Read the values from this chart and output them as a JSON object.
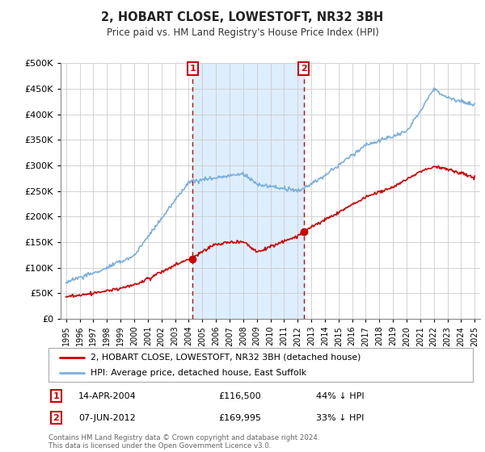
{
  "title": "2, HOBART CLOSE, LOWESTOFT, NR32 3BH",
  "subtitle": "Price paid vs. HM Land Registry's House Price Index (HPI)",
  "legend_line1": "2, HOBART CLOSE, LOWESTOFT, NR32 3BH (detached house)",
  "legend_line2": "HPI: Average price, detached house, East Suffolk",
  "sale1_date": "14-APR-2004",
  "sale1_price": 116500,
  "sale1_label": "44% ↓ HPI",
  "sale2_date": "07-JUN-2012",
  "sale2_price": 169995,
  "sale2_label": "33% ↓ HPI",
  "footnote": "Contains HM Land Registry data © Crown copyright and database right 2024.\nThis data is licensed under the Open Government Licence v3.0.",
  "ylim": [
    0,
    500000
  ],
  "yticks": [
    0,
    50000,
    100000,
    150000,
    200000,
    250000,
    300000,
    350000,
    400000,
    450000,
    500000
  ],
  "hpi_color": "#7aafdc",
  "property_color": "#cc0000",
  "shade_color": "#ddeeff",
  "vline_color": "#cc0000",
  "marker_box_color": "#cc0000",
  "background_color": "#ffffff",
  "grid_color": "#cccccc",
  "sale1_x": 2004.29,
  "sale2_x": 2012.44
}
